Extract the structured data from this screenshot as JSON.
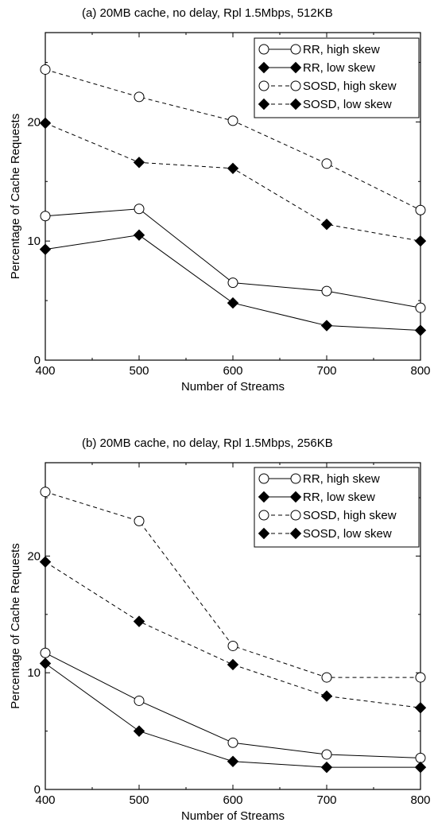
{
  "chart_data": [
    {
      "type": "line",
      "title": "(a)   20MB cache, no delay, Rpl 1.5Mbps, 512KB",
      "xlabel": "Number of Streams",
      "ylabel": "Percentage of Cache Requests",
      "x": [
        400,
        500,
        600,
        700,
        800
      ],
      "xticks": [
        "400",
        "500",
        "600",
        "700",
        "800"
      ],
      "yticks": [
        "0",
        "10",
        "20"
      ],
      "xlim": [
        400,
        800
      ],
      "ylim": [
        0,
        27.5
      ],
      "grid": false,
      "legend_position": "top-right",
      "series": [
        {
          "name": "RR, high skew",
          "values": [
            12.1,
            12.7,
            6.5,
            5.8,
            4.4
          ],
          "marker": "open-circle",
          "line": "solid"
        },
        {
          "name": "RR, low skew",
          "values": [
            9.3,
            10.5,
            4.8,
            2.9,
            2.5
          ],
          "marker": "filled-diamond",
          "line": "solid"
        },
        {
          "name": "SOSD, high skew",
          "values": [
            24.4,
            22.1,
            20.1,
            16.5,
            12.6
          ],
          "marker": "open-circle",
          "line": "dashed"
        },
        {
          "name": "SOSD, low skew",
          "values": [
            19.9,
            16.6,
            16.1,
            11.4,
            10.0
          ],
          "marker": "filled-diamond",
          "line": "dashed"
        }
      ]
    },
    {
      "type": "line",
      "title": "(b)   20MB cache, no delay, Rpl 1.5Mbps, 256KB",
      "xlabel": "Number of Streams",
      "ylabel": "Percentage of Cache Requests",
      "x": [
        400,
        500,
        600,
        700,
        800
      ],
      "xticks": [
        "400",
        "500",
        "600",
        "700",
        "800"
      ],
      "yticks": [
        "0",
        "10",
        "20"
      ],
      "xlim": [
        400,
        800
      ],
      "ylim": [
        0,
        28
      ],
      "grid": false,
      "legend_position": "top-right",
      "series": [
        {
          "name": "RR, high skew",
          "values": [
            11.7,
            7.6,
            4.0,
            3.0,
            2.7
          ],
          "marker": "open-circle",
          "line": "solid"
        },
        {
          "name": "RR, low skew",
          "values": [
            10.8,
            5.0,
            2.4,
            1.9,
            1.9
          ],
          "marker": "filled-diamond",
          "line": "solid"
        },
        {
          "name": "SOSD, high skew",
          "values": [
            25.5,
            23.0,
            12.3,
            9.6,
            9.6
          ],
          "marker": "open-circle",
          "line": "dashed"
        },
        {
          "name": "SOSD, low skew",
          "values": [
            19.5,
            14.4,
            10.7,
            8.0,
            7.0
          ],
          "marker": "filled-diamond",
          "line": "dashed"
        }
      ]
    }
  ]
}
